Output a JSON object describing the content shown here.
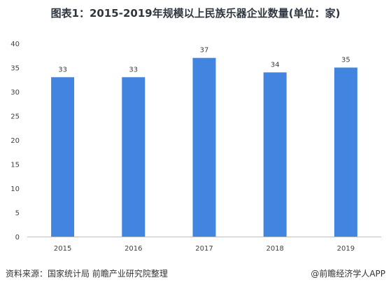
{
  "title": "图表1：2015-2019年规模以上民族乐器企业数量(单位：家)",
  "source": "资料来源：国家统计局 前瞻产业研究院整理",
  "credit": "@前瞻经济学人APP",
  "colors": {
    "bar": "#4285e0",
    "axis": "#bfbfbf",
    "grid": "#d9d9d9",
    "text": "#404040"
  },
  "chart_data": {
    "type": "bar",
    "title": "图表1：2015-2019年规模以上民族乐器企业数量(单位：家)",
    "categories": [
      "2015",
      "2016",
      "2017",
      "2018",
      "2019"
    ],
    "values": [
      33,
      33,
      37,
      34,
      35
    ],
    "data_labels": [
      "33",
      "33",
      "37",
      "34",
      "35"
    ],
    "y_ticks": [
      "0",
      "5",
      "10",
      "15",
      "20",
      "25",
      "30",
      "35",
      "40"
    ],
    "xlabel": "",
    "ylabel": "",
    "ylim": [
      0,
      40
    ],
    "grid": false,
    "legend": "none"
  }
}
